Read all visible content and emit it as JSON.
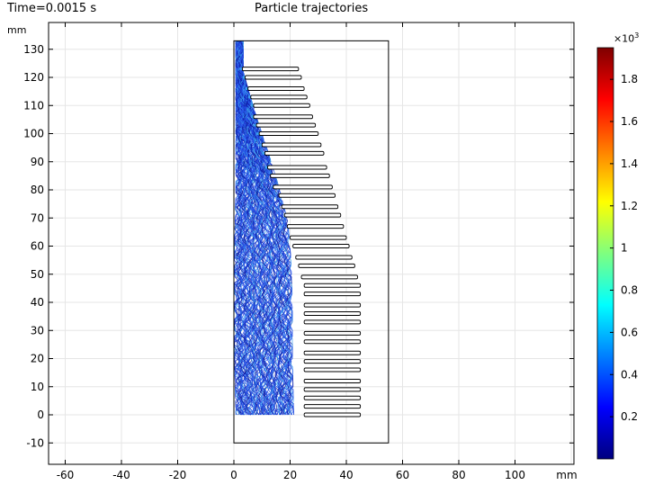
{
  "header": {
    "time_label": "Time=0.0015 s",
    "title": "Particle trajectories"
  },
  "chart_data": {
    "type": "line",
    "title": "Particle trajectories",
    "xlabel": "mm",
    "ylabel": "mm",
    "xlim": [
      -66,
      120
    ],
    "ylim": [
      -17,
      137
    ],
    "x_ticks": [
      "-60",
      "-40",
      "-20",
      "0",
      "20",
      "40",
      "60",
      "80",
      "100",
      "mm"
    ],
    "y_ticks": [
      "-10",
      "0",
      "10",
      "20",
      "30",
      "40",
      "50",
      "60",
      "70",
      "80",
      "90",
      "100",
      "110",
      "120",
      "130"
    ],
    "grid": true,
    "domain_rectangle": {
      "x": [
        0,
        55
      ],
      "y": [
        -10,
        133
      ]
    },
    "plates": [
      {
        "x0": 3,
        "x1": 23,
        "y": 123
      },
      {
        "x0": 4,
        "x1": 24,
        "y": 120
      },
      {
        "x0": 5,
        "x1": 25,
        "y": 116
      },
      {
        "x0": 6,
        "x1": 26,
        "y": 113
      },
      {
        "x0": 7,
        "x1": 27,
        "y": 110
      },
      {
        "x0": 7,
        "x1": 28,
        "y": 106
      },
      {
        "x0": 8,
        "x1": 29,
        "y": 103
      },
      {
        "x0": 9,
        "x1": 30,
        "y": 100
      },
      {
        "x0": 10,
        "x1": 31,
        "y": 96
      },
      {
        "x0": 11,
        "x1": 32,
        "y": 93
      },
      {
        "x0": 12,
        "x1": 33,
        "y": 88
      },
      {
        "x0": 13,
        "x1": 34,
        "y": 85
      },
      {
        "x0": 14,
        "x1": 35,
        "y": 81
      },
      {
        "x0": 16,
        "x1": 36,
        "y": 78
      },
      {
        "x0": 17,
        "x1": 37,
        "y": 74
      },
      {
        "x0": 18,
        "x1": 38,
        "y": 71
      },
      {
        "x0": 19,
        "x1": 39,
        "y": 67
      },
      {
        "x0": 20,
        "x1": 40,
        "y": 63
      },
      {
        "x0": 21,
        "x1": 41,
        "y": 60
      },
      {
        "x0": 22,
        "x1": 42,
        "y": 56
      },
      {
        "x0": 23,
        "x1": 43,
        "y": 53
      },
      {
        "x0": 24,
        "x1": 44,
        "y": 49
      },
      {
        "x0": 25,
        "x1": 45,
        "y": 46
      },
      {
        "x0": 25,
        "x1": 45,
        "y": 43
      },
      {
        "x0": 25,
        "x1": 45,
        "y": 39
      },
      {
        "x0": 25,
        "x1": 45,
        "y": 36
      },
      {
        "x0": 25,
        "x1": 45,
        "y": 33
      },
      {
        "x0": 25,
        "x1": 45,
        "y": 29
      },
      {
        "x0": 25,
        "x1": 45,
        "y": 26
      },
      {
        "x0": 25,
        "x1": 45,
        "y": 22
      },
      {
        "x0": 25,
        "x1": 45,
        "y": 19
      },
      {
        "x0": 25,
        "x1": 45,
        "y": 16
      },
      {
        "x0": 25,
        "x1": 45,
        "y": 12
      },
      {
        "x0": 25,
        "x1": 45,
        "y": 9
      },
      {
        "x0": 25,
        "x1": 45,
        "y": 6
      },
      {
        "x0": 25,
        "x1": 45,
        "y": 3
      },
      {
        "x0": 25,
        "x1": 45,
        "y": 0
      }
    ],
    "trajectory_envelope": {
      "left": [
        [
          1,
          133
        ],
        [
          1,
          120
        ],
        [
          1,
          100
        ],
        [
          1,
          80
        ],
        [
          0.5,
          60
        ],
        [
          0.5,
          40
        ],
        [
          0.5,
          20
        ],
        [
          1,
          0
        ]
      ],
      "right": [
        [
          3,
          133
        ],
        [
          3,
          122
        ],
        [
          5,
          115
        ],
        [
          8,
          105
        ],
        [
          12,
          93
        ],
        [
          16,
          80
        ],
        [
          19,
          68
        ],
        [
          20,
          55
        ],
        [
          20.5,
          40
        ],
        [
          20.5,
          20
        ],
        [
          21,
          0
        ]
      ]
    },
    "colorbar": {
      "exponent_label": "×10",
      "exponent": "3",
      "range": [
        0,
        1.95
      ],
      "ticks": [
        "0.2",
        "0.4",
        "0.6",
        "0.8",
        "1",
        "1.2",
        "1.4",
        "1.6",
        "1.8"
      ],
      "colormap": [
        "#00007f",
        "#0000ff",
        "#007fff",
        "#00ffff",
        "#7fff7f",
        "#ffff00",
        "#ff7f00",
        "#ff0000",
        "#7f0000"
      ]
    },
    "colors": {
      "trajectory_main": "#1f3fd8",
      "trajectory_dark": "#0a1a9a",
      "trajectory_light": "#3aa0f0",
      "grid": "#e6e6e6"
    }
  }
}
